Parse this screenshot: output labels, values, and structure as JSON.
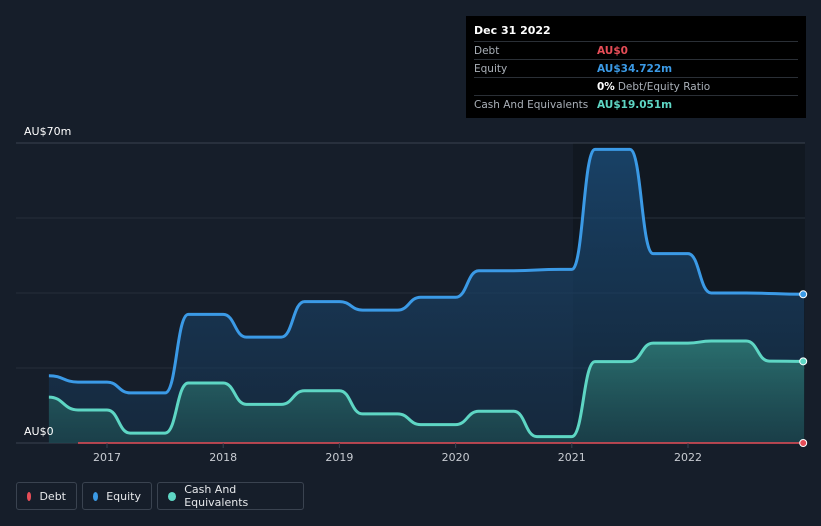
{
  "tooltip": {
    "date": "Dec 31 2022",
    "rows": [
      {
        "label": "Debt",
        "value": "AU$0",
        "color": "#e64d57"
      },
      {
        "label": "Equity",
        "value": "AU$34.722m",
        "color": "#3b9ae6"
      },
      {
        "label": "",
        "value": "0%",
        "suffix": "Debt/Equity Ratio",
        "color": "#ffffff"
      },
      {
        "label": "Cash And Equivalents",
        "value": "AU$19.051m",
        "color": "#5ed6c4"
      }
    ]
  },
  "legend": [
    {
      "label": "Debt",
      "color": "#e64d57"
    },
    {
      "label": "Equity",
      "color": "#3b9ae6"
    },
    {
      "label": "Cash And Equivalents",
      "color": "#5ed6c4"
    }
  ],
  "chart_data": {
    "type": "area",
    "ylim": [
      0,
      70
    ],
    "y_tick_labels": [
      "AU$0",
      "AU$70m"
    ],
    "x_tick_labels": [
      "2017",
      "2018",
      "2019",
      "2020",
      "2021",
      "2022"
    ],
    "xlim": [
      2016.5,
      2023.0
    ],
    "series": [
      {
        "name": "Equity",
        "color": "#3b9ae6",
        "points": [
          [
            2016.5,
            15.7
          ],
          [
            2016.75,
            14.2
          ],
          [
            2017.0,
            14.2
          ],
          [
            2017.2,
            11.7
          ],
          [
            2017.5,
            11.7
          ],
          [
            2017.7,
            30.0
          ],
          [
            2018.0,
            30.0
          ],
          [
            2018.2,
            24.7
          ],
          [
            2018.5,
            24.7
          ],
          [
            2018.7,
            33.0
          ],
          [
            2019.0,
            33.0
          ],
          [
            2019.2,
            31.0
          ],
          [
            2019.5,
            31.0
          ],
          [
            2019.7,
            34.0
          ],
          [
            2020.0,
            34.0
          ],
          [
            2020.2,
            40.2
          ],
          [
            2020.5,
            40.2
          ],
          [
            2020.9,
            40.5
          ],
          [
            2021.0,
            40.5
          ],
          [
            2021.2,
            68.5
          ],
          [
            2021.5,
            68.5
          ],
          [
            2021.7,
            44.2
          ],
          [
            2022.0,
            44.2
          ],
          [
            2022.2,
            35.0
          ],
          [
            2022.5,
            35.0
          ],
          [
            2023.0,
            34.7
          ]
        ]
      },
      {
        "name": "Cash And Equivalents",
        "color": "#5ed6c4",
        "points": [
          [
            2016.5,
            10.7
          ],
          [
            2016.75,
            7.7
          ],
          [
            2017.0,
            7.7
          ],
          [
            2017.2,
            2.3
          ],
          [
            2017.5,
            2.3
          ],
          [
            2017.7,
            14.0
          ],
          [
            2018.0,
            14.0
          ],
          [
            2018.2,
            9.0
          ],
          [
            2018.5,
            9.0
          ],
          [
            2018.7,
            12.2
          ],
          [
            2019.0,
            12.2
          ],
          [
            2019.2,
            6.8
          ],
          [
            2019.5,
            6.8
          ],
          [
            2019.7,
            4.3
          ],
          [
            2020.0,
            4.3
          ],
          [
            2020.2,
            7.4
          ],
          [
            2020.5,
            7.4
          ],
          [
            2020.7,
            1.5
          ],
          [
            2020.9,
            1.5
          ],
          [
            2021.0,
            1.5
          ],
          [
            2021.2,
            19.0
          ],
          [
            2021.5,
            19.0
          ],
          [
            2021.7,
            23.3
          ],
          [
            2022.0,
            23.3
          ],
          [
            2022.2,
            23.8
          ],
          [
            2022.5,
            23.8
          ],
          [
            2022.7,
            19.1
          ],
          [
            2023.0,
            19.05
          ]
        ]
      },
      {
        "name": "Debt",
        "color": "#e64d57",
        "points": [
          [
            2016.75,
            0
          ],
          [
            2023.0,
            0
          ]
        ]
      }
    ]
  }
}
